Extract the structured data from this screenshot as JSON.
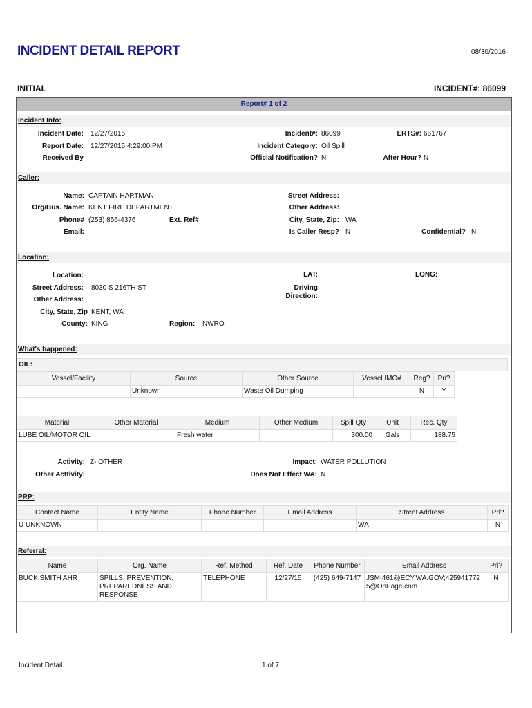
{
  "header": {
    "title": "INCIDENT DETAIL REPORT",
    "print_date": "08/30/2016",
    "status": "INITIAL",
    "incident_no": "INCIDENT#: 86099",
    "report_of": "Report# 1 of 2"
  },
  "incident_info": {
    "heading": "Incident Info:",
    "incident_date_label": "Incident  Date:",
    "incident_date": "12/27/2015",
    "report_date_label": "Report Date:",
    "report_date": "12/27/2015 4:29:00 PM",
    "received_by_label": "Received  By",
    "incident_no_label": "Incident#:",
    "incident_no": "86099",
    "category_label": "Incident Category:",
    "category": "Oil Spill",
    "official_label": "Official Notification?",
    "official": "N",
    "erts_label": "ERTS#:",
    "erts": "661767",
    "after_hour_label": "After Hour?",
    "after_hour": "N"
  },
  "caller": {
    "heading": "Caller:",
    "name_label": "Name:",
    "name": "CAPTAIN HARTMAN",
    "org_label": "Org/Bus. Name:",
    "org": "KENT FIRE DEPARTMENT",
    "phone_label": "Phone#",
    "phone": "(253) 856-4376",
    "ext_label": "Ext. Ref#",
    "email_label": "Email:",
    "street_label": "Street Address:",
    "other_label": "Other Address:",
    "csz_label": "City, State, Zip:",
    "csz": "WA",
    "resp_label": "Is Caller Resp?",
    "resp": "N",
    "conf_label": "Confidential?",
    "conf": "N"
  },
  "location": {
    "heading": "Location:",
    "location_label": "Location:",
    "street_label": "Street Address:",
    "street": "8030 S 216TH ST",
    "other_label": "Other Address:",
    "csz_label": "City, State, Zip",
    "csz": "KENT, WA",
    "county_label": "County:",
    "county": "KING",
    "region_label": "Region:",
    "region": "NWRO",
    "lat_label": "LAT:",
    "long_label": "LONG:",
    "driving_label1": "Driving",
    "driving_label2": "Direction:"
  },
  "happened": {
    "heading": "What's happened:",
    "oil_label": "OIL:",
    "vessel_table": {
      "headers": [
        "Vessel/Facility",
        "Source",
        "Other Source",
        "Vessel IMO#",
        "Reg?",
        "Pri?"
      ],
      "rows": [
        [
          "",
          "Unknown",
          "Waste Oil Dumping",
          "",
          "N",
          "Y"
        ]
      ]
    },
    "material_table": {
      "headers": [
        "Material",
        "Other Material",
        "Medium",
        "Other Medium",
        "Spill Qty",
        "Unit",
        "Rec. Qty"
      ],
      "rows": [
        [
          "LUBE OIL/MOTOR OIL",
          "",
          "Fresh water",
          "",
          "300.00",
          "Gals",
          "188.75"
        ]
      ]
    },
    "activity_label": "Activity:",
    "activity": "Z- OTHER",
    "other_activity_label": "Other Acttivity:",
    "impact_label": "Impact:",
    "impact": "WATER POLLUTION",
    "not_effect_label": "Does Not Effect WA:",
    "not_effect": "N"
  },
  "prp": {
    "heading": "PRP:",
    "headers": [
      "Contact Name",
      "Entity Name",
      "Phone Number",
      "Email Address",
      "Street Address",
      "Pri?"
    ],
    "rows": [
      [
        "U UNKNOWN",
        "",
        "",
        "",
        "WA",
        "N"
      ]
    ]
  },
  "referral": {
    "heading": "Referral:",
    "headers": [
      "Name",
      "Org. Name",
      "Ref. Method",
      "Ref. Date",
      "Phone Number",
      "Email Address",
      "Pri?"
    ],
    "rows": [
      [
        "BUCK  SMITH AHR",
        "SPILLS, PREVENTION, PREPAREDNESS AND RESPONSE",
        "TELEPHONE",
        "12/27/15",
        "(425) 649-7147",
        "JSMI461@ECY.WA.GOV;4259417725@OnPage.com",
        "N"
      ]
    ]
  },
  "footer": {
    "left": "Incident Detail",
    "page": "1 of 7"
  }
}
